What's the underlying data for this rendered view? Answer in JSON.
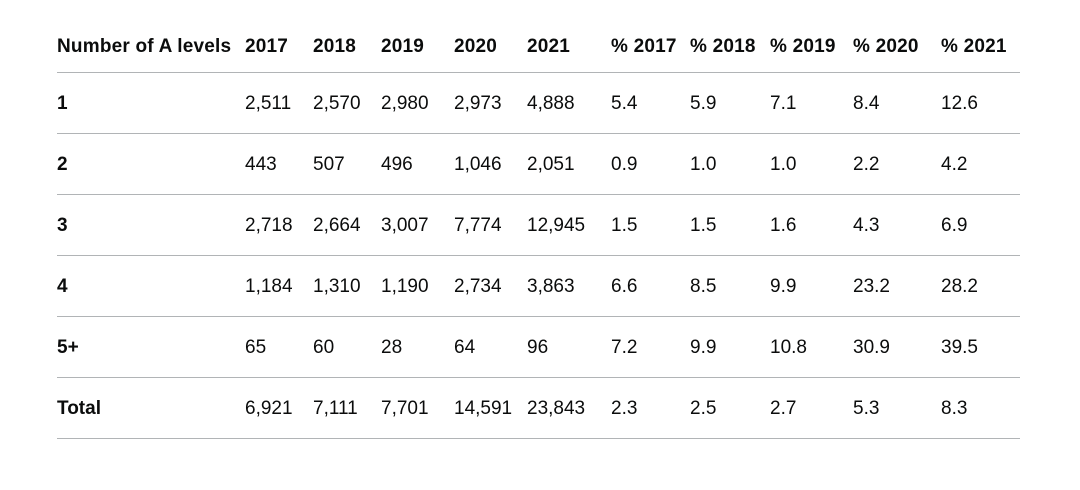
{
  "colors": {
    "text": "#0b0c0c",
    "border": "#b1b4b6",
    "background": "#ffffff"
  },
  "table": {
    "columns": [
      "Number of A levels",
      "2017",
      "2018",
      "2019",
      "2020",
      "2021",
      "% 2017",
      "% 2018",
      "% 2019",
      "% 2020",
      "% 2021"
    ],
    "rows": [
      {
        "label": "1",
        "cells": [
          "2,511",
          "2,570",
          "2,980",
          "2,973",
          "4,888",
          "5.4",
          "5.9",
          "7.1",
          "8.4",
          "12.6"
        ]
      },
      {
        "label": "2",
        "cells": [
          "443",
          "507",
          "496",
          "1,046",
          "2,051",
          "0.9",
          "1.0",
          "1.0",
          "2.2",
          "4.2"
        ]
      },
      {
        "label": "3",
        "cells": [
          "2,718",
          "2,664",
          "3,007",
          "7,774",
          "12,945",
          "1.5",
          "1.5",
          "1.6",
          "4.3",
          "6.9"
        ]
      },
      {
        "label": "4",
        "cells": [
          "1,184",
          "1,310",
          "1,190",
          "2,734",
          "3,863",
          "6.6",
          "8.5",
          "9.9",
          "23.2",
          "28.2"
        ]
      },
      {
        "label": "5+",
        "cells": [
          "65",
          "60",
          "28",
          "64",
          "96",
          "7.2",
          "9.9",
          "10.8",
          "30.9",
          "39.5"
        ]
      },
      {
        "label": "Total",
        "cells": [
          "6,921",
          "7,111",
          "7,701",
          "14,591",
          "23,843",
          "2.3",
          "2.5",
          "2.7",
          "5.3",
          "8.3"
        ]
      }
    ]
  },
  "chart_data": {
    "type": "table",
    "title": "",
    "columns": [
      "Number of A levels",
      "2017",
      "2018",
      "2019",
      "2020",
      "2021",
      "% 2017",
      "% 2018",
      "% 2019",
      "% 2020",
      "% 2021"
    ],
    "rows": [
      [
        "1",
        2511,
        2570,
        2980,
        2973,
        4888,
        5.4,
        5.9,
        7.1,
        8.4,
        12.6
      ],
      [
        "2",
        443,
        507,
        496,
        1046,
        2051,
        0.9,
        1.0,
        1.0,
        2.2,
        4.2
      ],
      [
        "3",
        2718,
        2664,
        3007,
        7774,
        12945,
        1.5,
        1.5,
        1.6,
        4.3,
        6.9
      ],
      [
        "4",
        1184,
        1310,
        1190,
        2734,
        3863,
        6.6,
        8.5,
        9.9,
        23.2,
        28.2
      ],
      [
        "5+",
        65,
        60,
        28,
        64,
        96,
        7.2,
        9.9,
        10.8,
        30.9,
        39.5
      ],
      [
        "Total",
        6921,
        7111,
        7701,
        14591,
        23843,
        2.3,
        2.5,
        2.7,
        5.3,
        8.3
      ]
    ]
  }
}
